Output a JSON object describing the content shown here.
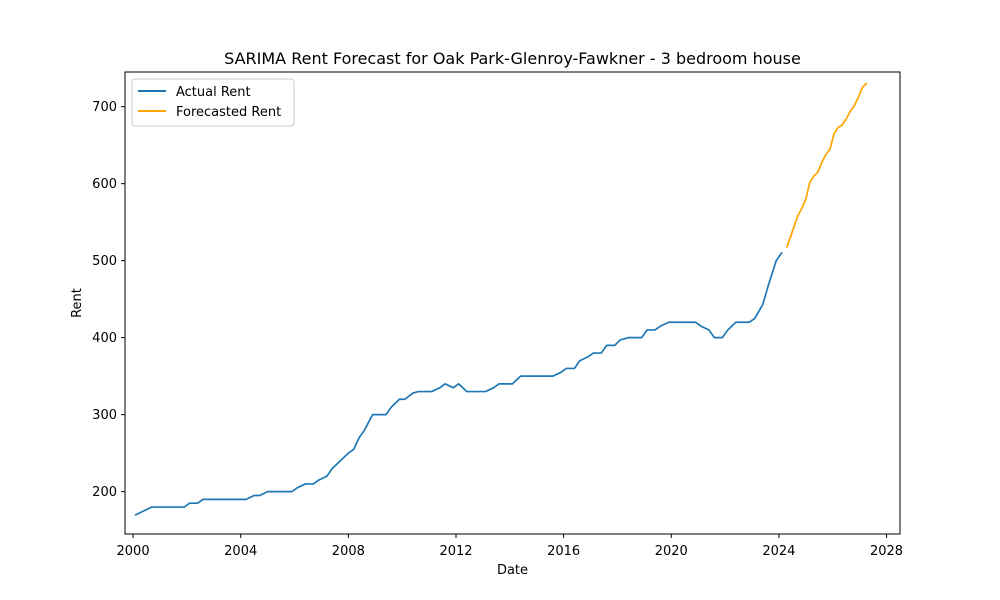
{
  "chart_data": {
    "type": "line",
    "title": "SARIMA Rent Forecast for Oak Park-Glenroy-Fawkner - 3 bedroom house",
    "xlabel": "Date",
    "ylabel": "Rent",
    "xlim": [
      1999.7,
      2028.5
    ],
    "ylim": [
      145,
      745
    ],
    "xticks": [
      2000,
      2004,
      2008,
      2012,
      2016,
      2020,
      2024,
      2028
    ],
    "xtick_labels": [
      "2000",
      "2004",
      "2008",
      "2012",
      "2016",
      "2020",
      "2024",
      "2028"
    ],
    "yticks": [
      200,
      300,
      400,
      500,
      600,
      700
    ],
    "ytick_labels": [
      "200",
      "300",
      "400",
      "500",
      "600",
      "700"
    ],
    "grid": false,
    "legend": "top-left",
    "series": [
      {
        "name": "Actual Rent",
        "color": "#1f77b4",
        "x": [
          2000.1,
          2000.4,
          2000.7,
          2001.0,
          2001.3,
          2001.6,
          2001.9,
          2002.1,
          2002.4,
          2002.6,
          2002.9,
          2003.2,
          2003.5,
          2003.8,
          2004.0,
          2004.2,
          2004.5,
          2004.7,
          2005.0,
          2005.3,
          2005.6,
          2005.9,
          2006.1,
          2006.4,
          2006.7,
          2006.9,
          2007.2,
          2007.4,
          2007.7,
          2008.0,
          2008.2,
          2008.4,
          2008.6,
          2008.9,
          2009.1,
          2009.4,
          2009.6,
          2009.9,
          2010.1,
          2010.4,
          2010.6,
          2010.9,
          2011.1,
          2011.4,
          2011.6,
          2011.9,
          2012.1,
          2012.4,
          2012.6,
          2012.9,
          2013.1,
          2013.4,
          2013.6,
          2013.9,
          2014.1,
          2014.4,
          2014.6,
          2014.9,
          2015.1,
          2015.4,
          2015.6,
          2015.9,
          2016.1,
          2016.4,
          2016.6,
          2016.9,
          2017.1,
          2017.4,
          2017.6,
          2017.9,
          2018.1,
          2018.4,
          2018.6,
          2018.9,
          2019.1,
          2019.4,
          2019.6,
          2019.9,
          2020.1,
          2020.4,
          2020.6,
          2020.9,
          2021.1,
          2021.4,
          2021.6,
          2021.9,
          2022.1,
          2022.4,
          2022.6,
          2022.9,
          2023.1,
          2023.4,
          2023.6,
          2023.9,
          2024.1
        ],
        "values": [
          170,
          175,
          180,
          180,
          180,
          180,
          180,
          185,
          185,
          190,
          190,
          190,
          190,
          190,
          190,
          190,
          195,
          195,
          200,
          200,
          200,
          200,
          205,
          210,
          210,
          215,
          220,
          230,
          240,
          250,
          255,
          270,
          280,
          300,
          300,
          300,
          310,
          320,
          320,
          328,
          330,
          330,
          330,
          335,
          340,
          335,
          340,
          330,
          330,
          330,
          330,
          335,
          340,
          340,
          340,
          350,
          350,
          350,
          350,
          350,
          350,
          355,
          360,
          360,
          370,
          375,
          380,
          380,
          390,
          390,
          397,
          400,
          400,
          400,
          410,
          410,
          415,
          420,
          420,
          420,
          420,
          420,
          415,
          410,
          400,
          400,
          410,
          420,
          420,
          420,
          425,
          443,
          467,
          500,
          510
        ]
      },
      {
        "name": "Forecasted Rent",
        "color": "#ffa500",
        "x": [
          2024.3,
          2024.4,
          2024.55,
          2024.7,
          2024.85,
          2025.0,
          2025.15,
          2025.3,
          2025.45,
          2025.6,
          2025.75,
          2025.9,
          2026.05,
          2026.2,
          2026.35,
          2026.5,
          2026.65,
          2026.8,
          2026.95,
          2027.1,
          2027.25
        ],
        "values": [
          518,
          528,
          543,
          558,
          568,
          580,
          602,
          610,
          615,
          628,
          638,
          645,
          665,
          673,
          676,
          684,
          694,
          701,
          712,
          725,
          730
        ]
      }
    ]
  }
}
